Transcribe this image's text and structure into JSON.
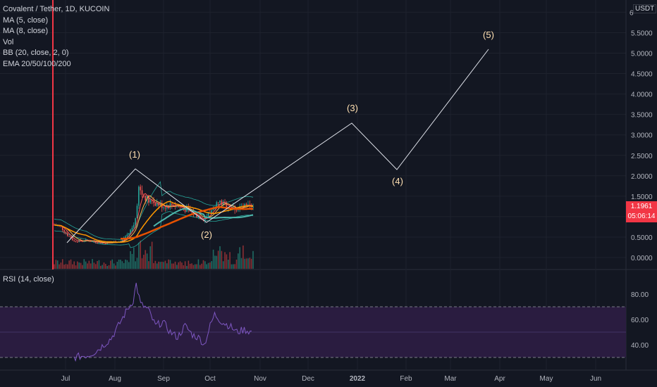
{
  "header": {
    "symbol_line": "Covalent / Tether, 1D, KUCOIN",
    "indicators": [
      "MA (5, close)",
      "MA (8, close)",
      "Vol",
      "BB (20, close, 2, 0)",
      "EMA 20/50/100/200"
    ]
  },
  "price_axis": {
    "unit": "USDT",
    "ticks": [
      "6",
      "5.5000",
      "5.0000",
      "4.5000",
      "4.0000",
      "3.5000",
      "3.0000",
      "2.5000",
      "2.0000",
      "1.5000",
      "1.0000",
      "0.5000",
      "0.0000"
    ],
    "tick_values": [
      6,
      5.5,
      5,
      4.5,
      4,
      3.5,
      3,
      2.5,
      2,
      1.5,
      1,
      0.5,
      0
    ]
  },
  "last_price": {
    "value": "1.1961",
    "countdown": "05:06:14",
    "color": "#f23645"
  },
  "rsi": {
    "title": "RSI (14, close)",
    "ticks": [
      "80.00",
      "60.00",
      "40.00"
    ],
    "tick_values": [
      80,
      60,
      40
    ],
    "upper_band": 70,
    "lower_band": 30,
    "fill_color": "#2a1c40",
    "line_color": "#7e57c2"
  },
  "time_axis": {
    "labels": [
      "Jul",
      "Aug",
      "Sep",
      "Oct",
      "Nov",
      "Dec",
      "2022",
      "Feb",
      "Mar",
      "Apr",
      "May",
      "Jun"
    ]
  },
  "waves": [
    {
      "label": "(1)",
      "color": "#ffe0b2"
    },
    {
      "label": "(2)",
      "color": "#ffe0b2"
    },
    {
      "label": "(3)",
      "color": "#ffe0b2"
    },
    {
      "label": "(4)",
      "color": "#ffe0b2"
    },
    {
      "label": "(5)",
      "color": "#ffe0b2"
    }
  ],
  "colors": {
    "up": "#26a69a",
    "down": "#ef5350",
    "ema": "#ff9800",
    "bb": "#26a69a"
  }
}
